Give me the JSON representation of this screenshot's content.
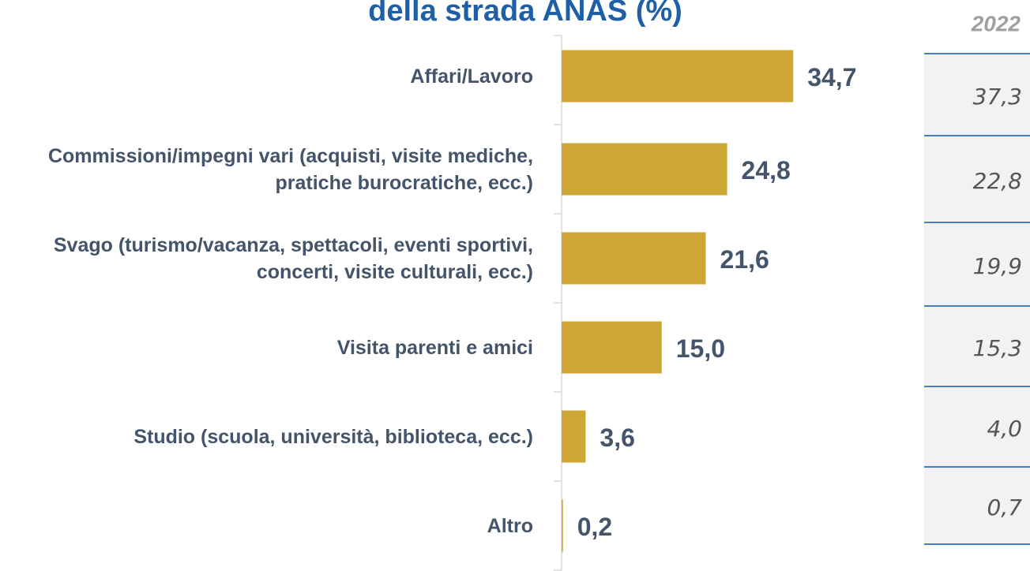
{
  "chart_data": {
    "type": "bar",
    "orientation": "horizontal",
    "title": "della strada ANAS (%)",
    "categories": [
      "Affari/Lavoro",
      "Commissioni/impegni vari (acquisti, visite mediche, pratiche burocratiche, ecc.)",
      "Svago (turismo/vacanza, spettacoli, eventi sportivi, concerti, visite culturali, ecc.)",
      "Visita parenti e amici",
      "Studio (scuola, università, biblioteca, ecc.)",
      "Altro"
    ],
    "values": [
      34.7,
      24.8,
      21.6,
      15.0,
      3.6,
      0.2
    ],
    "value_labels": [
      "34,7",
      "24,8",
      "21,6",
      "15,0",
      "3,6",
      "0,2"
    ],
    "color": "#cfa734",
    "xlim": [
      0,
      40
    ],
    "table": {
      "header": "2022",
      "values": [
        "37,3",
        "22,8",
        "19,9",
        "15,3",
        "4,0",
        "0,7"
      ]
    }
  }
}
